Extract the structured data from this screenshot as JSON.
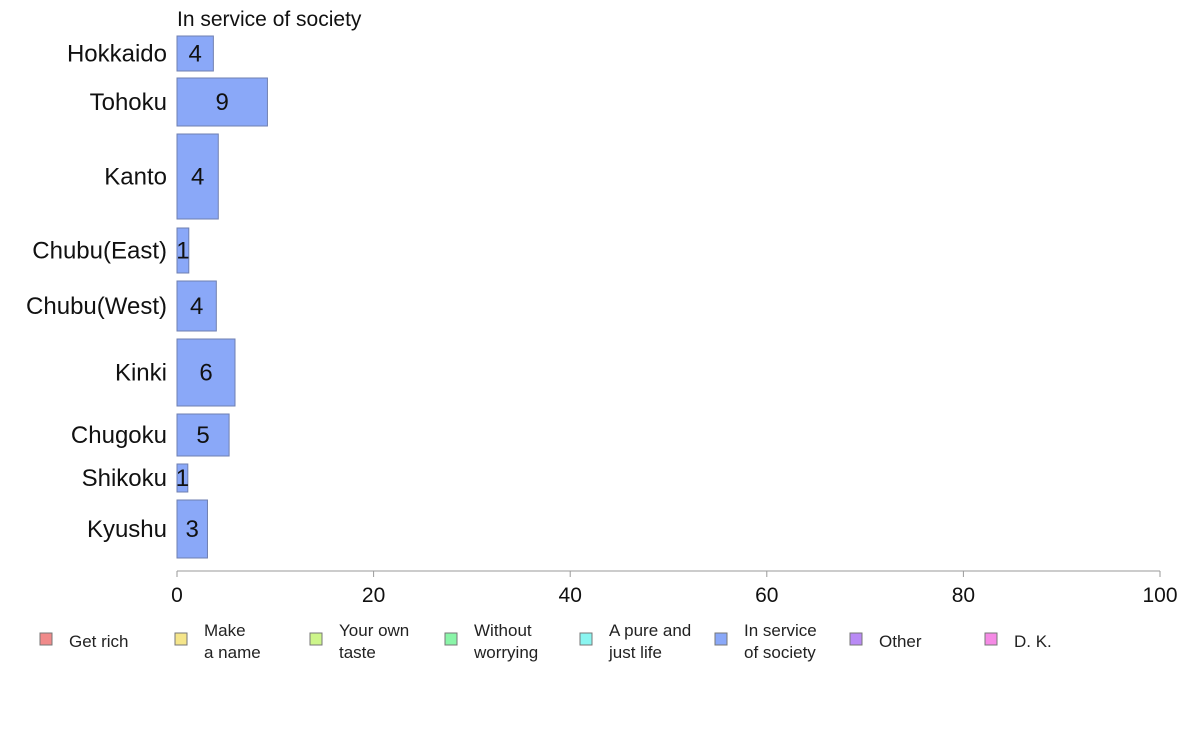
{
  "chart_data": {
    "type": "bar",
    "orientation": "horizontal",
    "title": "In service of society",
    "categories": [
      "Hokkaido",
      "Tohoku",
      "Kanto",
      "Chubu(East)",
      "Chubu(West)",
      "Kinki",
      "Chugoku",
      "Shikoku",
      "Kyushu"
    ],
    "series": [
      {
        "name": "In service of society",
        "values": [
          3.7,
          9.2,
          4.2,
          1.2,
          4.0,
          5.9,
          5.3,
          1.1,
          3.1
        ],
        "labels": [
          "4",
          "9",
          "4",
          "1",
          "4",
          "6",
          "5",
          "1",
          "3"
        ],
        "color": "#8aa8f8"
      }
    ],
    "xlim": [
      0,
      100
    ],
    "xticks": [
      "0",
      "20",
      "40",
      "60",
      "80",
      "100"
    ],
    "grid": false,
    "legend_position": "bottom",
    "legend": [
      {
        "label": [
          "Get rich"
        ],
        "color": "#f08a8a"
      },
      {
        "label": [
          "Make",
          "a name"
        ],
        "color": "#f5e58a"
      },
      {
        "label": [
          "Your own",
          "taste"
        ],
        "color": "#cdf58a"
      },
      {
        "label": [
          "Without",
          "worrying"
        ],
        "color": "#8af5a8"
      },
      {
        "label": [
          "A pure and",
          "just life"
        ],
        "color": "#8af5f0"
      },
      {
        "label": [
          "In service",
          "of society"
        ],
        "color": "#8aa8f8"
      },
      {
        "label": [
          "Other"
        ],
        "color": "#b98af5"
      },
      {
        "label": [
          "D. K."
        ],
        "color": "#f58ae5"
      }
    ]
  }
}
